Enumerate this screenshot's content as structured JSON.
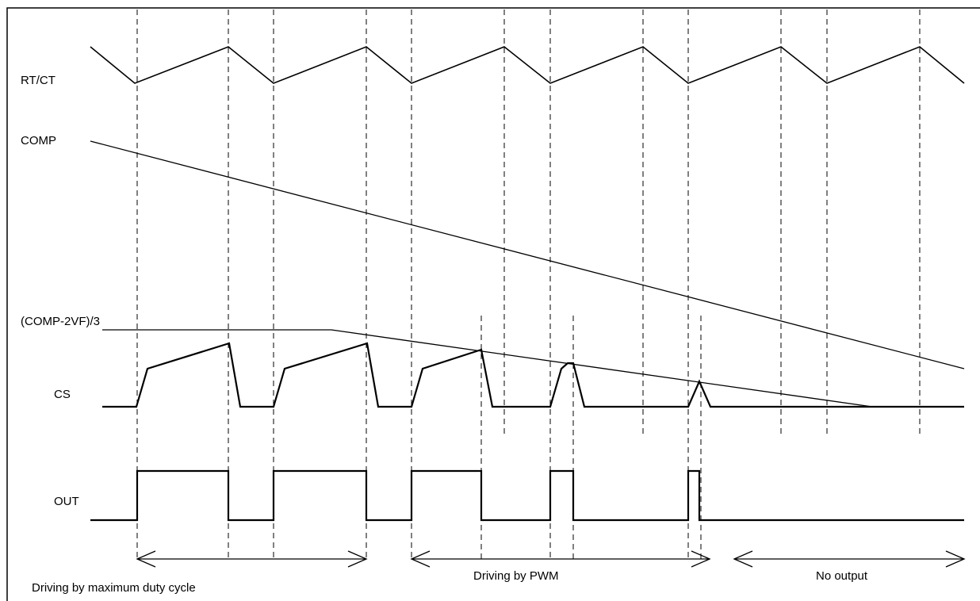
{
  "signals": {
    "rtct": "RT/CT",
    "comp": "COMP",
    "threshold": "(COMP-2VF)/3",
    "cs": "CS",
    "out": "OUT"
  },
  "regions": {
    "max_duty": "Driving by maximum duty cycle",
    "pwm": "Driving by PWM",
    "no_output": "No output"
  }
}
